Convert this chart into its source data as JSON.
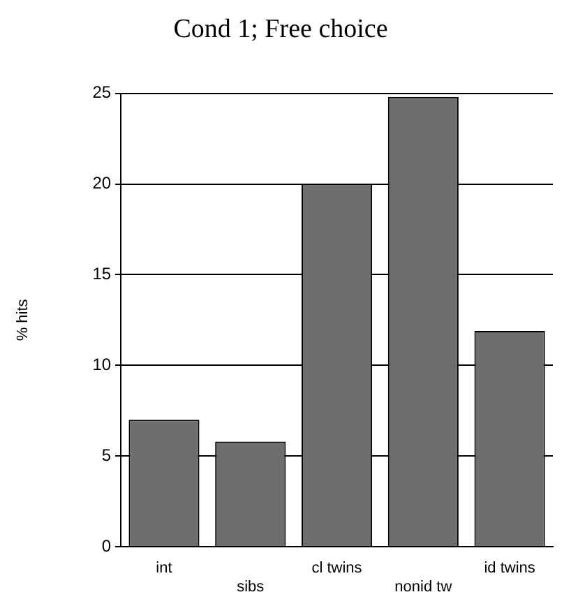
{
  "chart_data": {
    "type": "bar",
    "title": "Cond 1; Free choice",
    "ylabel": "% hits",
    "categories": [
      "int",
      "sibs",
      "cl twins",
      "nonid tw",
      "id twins"
    ],
    "values": [
      7,
      5.8,
      20,
      24.8,
      11.9
    ],
    "color": "#6e6e6e",
    "ylim": [
      0,
      25
    ],
    "yticks": [
      0,
      5,
      10,
      15,
      20,
      25
    ],
    "grid": "y"
  }
}
